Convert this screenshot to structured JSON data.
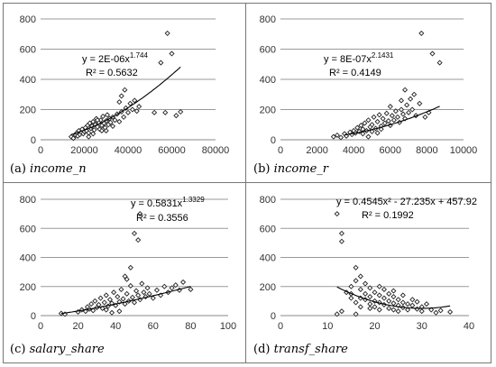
{
  "panels": [
    {
      "id": "a",
      "caption_prefix": "(a)",
      "caption_var": "income_n",
      "equation": "y = 2E-06x",
      "equation_exp": "1.744",
      "r2": "R² = 0.5632",
      "chart_data": {
        "type": "scatter",
        "xlim": [
          0,
          80000
        ],
        "ylim": [
          0,
          800
        ],
        "xticks": [
          "0",
          "20000",
          "40000",
          "60000",
          "80000"
        ],
        "yticks": [
          "0",
          "200",
          "400",
          "600",
          "800"
        ],
        "grid": "horizontal",
        "points": [
          [
            14000,
            20
          ],
          [
            15000,
            10
          ],
          [
            16000,
            30
          ],
          [
            16500,
            45
          ],
          [
            17000,
            25
          ],
          [
            17500,
            60
          ],
          [
            18000,
            35
          ],
          [
            18500,
            50
          ],
          [
            19000,
            70
          ],
          [
            19500,
            40
          ],
          [
            20000,
            55
          ],
          [
            20500,
            80
          ],
          [
            21000,
            60
          ],
          [
            21500,
            95
          ],
          [
            22000,
            45
          ],
          [
            22500,
            110
          ],
          [
            23000,
            75
          ],
          [
            23500,
            90
          ],
          [
            24000,
            120
          ],
          [
            24500,
            65
          ],
          [
            25000,
            100
          ],
          [
            25500,
            140
          ],
          [
            26000,
            85
          ],
          [
            26500,
            115
          ],
          [
            27000,
            70
          ],
          [
            27500,
            130
          ],
          [
            28000,
            95
          ],
          [
            28500,
            155
          ],
          [
            29000,
            110
          ],
          [
            29500,
            80
          ],
          [
            30000,
            125
          ],
          [
            30500,
            165
          ],
          [
            31000,
            100
          ],
          [
            31500,
            140
          ],
          [
            32000,
            115
          ],
          [
            33000,
            150
          ],
          [
            34000,
            130
          ],
          [
            35000,
            170
          ],
          [
            36000,
            120
          ],
          [
            37000,
            185
          ],
          [
            38000,
            150
          ],
          [
            39000,
            210
          ],
          [
            40000,
            180
          ],
          [
            41000,
            240
          ],
          [
            42000,
            200
          ],
          [
            43000,
            260
          ],
          [
            44000,
            190
          ],
          [
            45000,
            220
          ],
          [
            37000,
            290
          ],
          [
            38500,
            330
          ],
          [
            52000,
            180
          ],
          [
            55000,
            510
          ],
          [
            57000,
            180
          ],
          [
            58000,
            705
          ],
          [
            60000,
            570
          ],
          [
            62000,
            160
          ],
          [
            64000,
            185
          ],
          [
            26000,
            130
          ],
          [
            28000,
            60
          ],
          [
            24000,
            40
          ],
          [
            22000,
            20
          ],
          [
            33000,
            90
          ],
          [
            36000,
            250
          ],
          [
            30000,
            60
          ]
        ],
        "trend": {
          "type": "power",
          "a": 2e-06,
          "b": 1.744,
          "x_range": [
            14000,
            64000
          ]
        }
      }
    },
    {
      "id": "b",
      "caption_prefix": "(b)",
      "caption_var": "income_r",
      "equation": "y = 8E-07x",
      "equation_exp": "2.1431",
      "r2": "R² = 0.4149",
      "chart_data": {
        "type": "scatter",
        "xlim": [
          0,
          10000
        ],
        "ylim": [
          0,
          800
        ],
        "xticks": [
          "0",
          "2000",
          "4000",
          "6000",
          "8000",
          "10000"
        ],
        "yticks": [
          "0",
          "200",
          "400",
          "600",
          "800"
        ],
        "grid": "horizontal",
        "points": [
          [
            2900,
            20
          ],
          [
            3100,
            30
          ],
          [
            3300,
            15
          ],
          [
            3500,
            40
          ],
          [
            3600,
            25
          ],
          [
            3800,
            50
          ],
          [
            3900,
            35
          ],
          [
            4000,
            60
          ],
          [
            4100,
            45
          ],
          [
            4200,
            80
          ],
          [
            4300,
            55
          ],
          [
            4400,
            95
          ],
          [
            4500,
            70
          ],
          [
            4600,
            110
          ],
          [
            4700,
            60
          ],
          [
            4800,
            130
          ],
          [
            4900,
            85
          ],
          [
            5000,
            100
          ],
          [
            5100,
            150
          ],
          [
            5200,
            75
          ],
          [
            5300,
            120
          ],
          [
            5400,
            165
          ],
          [
            5500,
            90
          ],
          [
            5600,
            140
          ],
          [
            5700,
            110
          ],
          [
            5800,
            175
          ],
          [
            5900,
            125
          ],
          [
            6000,
            95
          ],
          [
            6100,
            160
          ],
          [
            6200,
            130
          ],
          [
            6300,
            190
          ],
          [
            6400,
            150
          ],
          [
            6500,
            115
          ],
          [
            6600,
            200
          ],
          [
            6700,
            170
          ],
          [
            6800,
            140
          ],
          [
            6900,
            230
          ],
          [
            7000,
            180
          ],
          [
            7100,
            270
          ],
          [
            7200,
            200
          ],
          [
            7300,
            300
          ],
          [
            7400,
            160
          ],
          [
            6800,
            330
          ],
          [
            7700,
            705
          ],
          [
            8300,
            570
          ],
          [
            8700,
            510
          ],
          [
            8100,
            180
          ],
          [
            7900,
            150
          ],
          [
            4500,
            40
          ],
          [
            5000,
            55
          ],
          [
            5500,
            70
          ],
          [
            4800,
            20
          ],
          [
            6000,
            220
          ],
          [
            6600,
            260
          ],
          [
            5300,
            45
          ],
          [
            7600,
            240
          ]
        ],
        "trend": {
          "type": "power",
          "a": 8e-07,
          "b": 2.1431,
          "x_range": [
            3500,
            8700
          ]
        }
      }
    },
    {
      "id": "c",
      "caption_prefix": "(c)",
      "caption_var": "salary_share",
      "equation": "y = 0.5831x",
      "equation_exp": "1.3329",
      "r2": "R² = 0.3556",
      "chart_data": {
        "type": "scatter",
        "xlim": [
          0,
          100
        ],
        "ylim": [
          0,
          800
        ],
        "xticks": [
          "0",
          "20",
          "40",
          "60",
          "80",
          "100"
        ],
        "yticks": [
          "0",
          "200",
          "400",
          "600",
          "800"
        ],
        "grid": "horizontal",
        "points": [
          [
            11,
            15
          ],
          [
            13,
            10
          ],
          [
            20,
            25
          ],
          [
            22,
            40
          ],
          [
            24,
            30
          ],
          [
            25,
            60
          ],
          [
            26,
            45
          ],
          [
            27,
            80
          ],
          [
            28,
            35
          ],
          [
            29,
            100
          ],
          [
            30,
            55
          ],
          [
            31,
            75
          ],
          [
            32,
            120
          ],
          [
            33,
            50
          ],
          [
            34,
            90
          ],
          [
            35,
            140
          ],
          [
            36,
            65
          ],
          [
            37,
            110
          ],
          [
            38,
            85
          ],
          [
            39,
            160
          ],
          [
            40,
            70
          ],
          [
            41,
            130
          ],
          [
            42,
            95
          ],
          [
            43,
            180
          ],
          [
            44,
            115
          ],
          [
            45,
            80
          ],
          [
            46,
            150
          ],
          [
            47,
            100
          ],
          [
            48,
            205
          ],
          [
            49,
            125
          ],
          [
            50,
            90
          ],
          [
            51,
            170
          ],
          [
            52,
            140
          ],
          [
            53,
            110
          ],
          [
            54,
            220
          ],
          [
            55,
            160
          ],
          [
            56,
            130
          ],
          [
            57,
            190
          ],
          [
            58,
            150
          ],
          [
            60,
            120
          ],
          [
            62,
            175
          ],
          [
            64,
            140
          ],
          [
            66,
            200
          ],
          [
            68,
            160
          ],
          [
            70,
            190
          ],
          [
            72,
            210
          ],
          [
            74,
            175
          ],
          [
            76,
            230
          ],
          [
            80,
            180
          ],
          [
            50,
            565
          ],
          [
            53,
            700
          ],
          [
            52,
            520
          ],
          [
            48,
            330
          ],
          [
            45,
            270
          ],
          [
            46,
            250
          ],
          [
            35,
            40
          ],
          [
            38,
            20
          ],
          [
            42,
            30
          ]
        ],
        "trend": {
          "type": "power",
          "a": 0.5831,
          "b": 1.3329,
          "x_range": [
            11,
            80
          ]
        }
      }
    },
    {
      "id": "d",
      "caption_prefix": "(d)",
      "caption_var": "transf_share",
      "equation": "y = 0.4545x² - 27.235x + 457.92",
      "equation_exp": "",
      "r2": "R² = 0.1992",
      "chart_data": {
        "type": "scatter",
        "xlim": [
          0,
          40
        ],
        "ylim": [
          0,
          800
        ],
        "xticks": [
          "0",
          "10",
          "20",
          "30",
          "40"
        ],
        "yticks": [
          "0",
          "200",
          "400",
          "600",
          "800"
        ],
        "grid": "horizontal",
        "points": [
          [
            12,
            700
          ],
          [
            13,
            565
          ],
          [
            13,
            510
          ],
          [
            12,
            10
          ],
          [
            13,
            30
          ],
          [
            14,
            160
          ],
          [
            15,
            200
          ],
          [
            15,
            120
          ],
          [
            16,
            240
          ],
          [
            16,
            330
          ],
          [
            16,
            90
          ],
          [
            17,
            180
          ],
          [
            17,
            270
          ],
          [
            17,
            60
          ],
          [
            18,
            150
          ],
          [
            18,
            220
          ],
          [
            18,
            110
          ],
          [
            19,
            130
          ],
          [
            19,
            80
          ],
          [
            19,
            190
          ],
          [
            20,
            100
          ],
          [
            20,
            160
          ],
          [
            20,
            60
          ],
          [
            21,
            90
          ],
          [
            21,
            140
          ],
          [
            21,
            40
          ],
          [
            22,
            120
          ],
          [
            22,
            75
          ],
          [
            22,
            180
          ],
          [
            23,
            100
          ],
          [
            23,
            50
          ],
          [
            23,
            150
          ],
          [
            24,
            85
          ],
          [
            24,
            130
          ],
          [
            24,
            40
          ],
          [
            25,
            110
          ],
          [
            25,
            70
          ],
          [
            25,
            30
          ],
          [
            26,
            90
          ],
          [
            26,
            55
          ],
          [
            27,
            80
          ],
          [
            27,
            40
          ],
          [
            28,
            70
          ],
          [
            28,
            110
          ],
          [
            29,
            45
          ],
          [
            29,
            95
          ],
          [
            30,
            30
          ],
          [
            30,
            60
          ],
          [
            31,
            80
          ],
          [
            32,
            40
          ],
          [
            33,
            20
          ],
          [
            34,
            35
          ],
          [
            36,
            25
          ],
          [
            17,
            120
          ],
          [
            19,
            50
          ],
          [
            21,
            200
          ],
          [
            24,
            170
          ],
          [
            26,
            140
          ],
          [
            15,
            150
          ],
          [
            16,
            10
          ]
        ],
        "trend": {
          "type": "poly2",
          "a": 0.4545,
          "b": -27.235,
          "c": 457.92,
          "x_range": [
            12,
            36
          ]
        }
      }
    }
  ]
}
